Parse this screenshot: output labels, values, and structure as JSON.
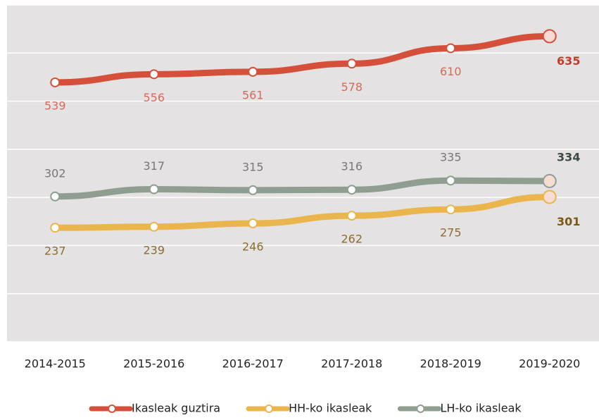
{
  "chart_data": {
    "type": "line",
    "categories": [
      "2014-2015",
      "2015-2016",
      "2016-2017",
      "2017-2018",
      "2018-2019",
      "2019-2020"
    ],
    "series": [
      {
        "name": "Ikasleak guztira",
        "color": "#d4503a",
        "label_color": "#d9695a",
        "label_position": "below",
        "values": [
          539,
          556,
          561,
          578,
          610,
          635
        ]
      },
      {
        "name": "HH-ko ikasleak",
        "color": "#eab54c",
        "label_color": "#8c6d33",
        "label_position": "below",
        "values": [
          237,
          239,
          246,
          262,
          275,
          301
        ]
      },
      {
        "name": "LH-ko ikasleak",
        "color": "#909e92",
        "label_color": "#777777",
        "label_position": "above",
        "values": [
          302,
          317,
          315,
          316,
          335,
          334
        ]
      }
    ],
    "ylim": [
      0,
      700
    ],
    "yticks": [
      0,
      100,
      200,
      300,
      400,
      500,
      600,
      700
    ],
    "grid": true,
    "legend": "bottom"
  }
}
